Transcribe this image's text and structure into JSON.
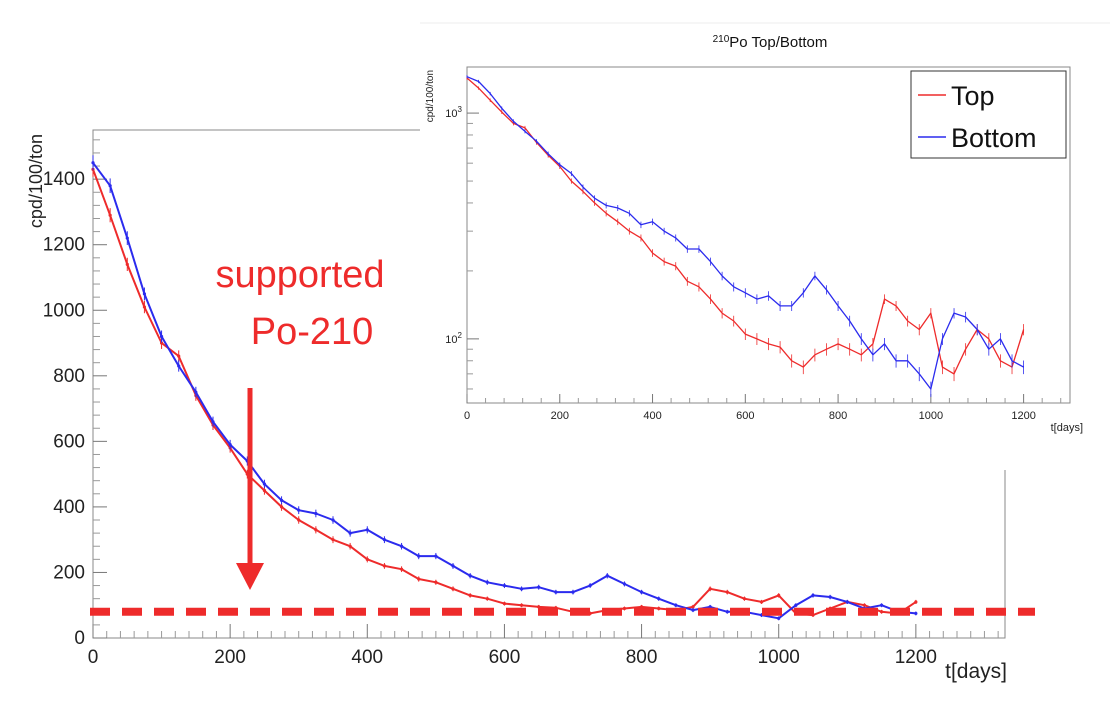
{
  "chart_data": [
    {
      "type": "line",
      "title": "",
      "xlabel": "t[days]",
      "ylabel": "cpd/100/ton",
      "xlim": [
        0,
        1330
      ],
      "ylim": [
        0,
        1550
      ],
      "xticks": [
        0,
        200,
        400,
        600,
        800,
        1000,
        1200
      ],
      "yticks": [
        0,
        200,
        400,
        600,
        800,
        1000,
        1200,
        1400
      ],
      "x": [
        0,
        25,
        50,
        75,
        100,
        125,
        150,
        175,
        200,
        225,
        250,
        275,
        300,
        325,
        350,
        375,
        400,
        425,
        450,
        475,
        500,
        525,
        550,
        575,
        600,
        625,
        650,
        675,
        700,
        725,
        750,
        775,
        800,
        825,
        850,
        875,
        900,
        925,
        950,
        975,
        1000,
        1025,
        1050,
        1075,
        1100,
        1125,
        1150,
        1175,
        1200
      ],
      "series": [
        {
          "name": "Top",
          "color": "#ee2b2b",
          "values": [
            1430,
            1290,
            1140,
            1010,
            900,
            860,
            740,
            650,
            580,
            500,
            450,
            400,
            360,
            330,
            300,
            280,
            240,
            220,
            210,
            180,
            170,
            150,
            130,
            120,
            105,
            100,
            95,
            92,
            80,
            75,
            85,
            90,
            95,
            90,
            85,
            95,
            150,
            140,
            120,
            110,
            130,
            75,
            70,
            90,
            110,
            100,
            80,
            75,
            110
          ]
        },
        {
          "name": "Bottom",
          "color": "#2b2bee",
          "values": [
            1450,
            1380,
            1220,
            1050,
            920,
            830,
            750,
            660,
            590,
            540,
            470,
            420,
            390,
            380,
            360,
            320,
            330,
            300,
            280,
            250,
            250,
            220,
            190,
            170,
            160,
            150,
            155,
            140,
            140,
            160,
            190,
            165,
            140,
            120,
            100,
            85,
            95,
            80,
            80,
            70,
            60,
            100,
            130,
            125,
            110,
            90,
            100,
            80,
            75
          ]
        }
      ],
      "reference_line": {
        "value": 80,
        "style": "dashed",
        "color": "#ee2b2b"
      }
    },
    {
      "type": "line",
      "title_main": "Po Top/Bottom",
      "title_sup": "210",
      "xlabel": "t[days]",
      "ylabel": "cpd/100/ton",
      "yscale": "log",
      "xlim": [
        0,
        1300
      ],
      "ylim": [
        52,
        1600
      ],
      "xticks": [
        0,
        200,
        400,
        600,
        800,
        1000,
        1200
      ],
      "yticks_log": [
        {
          "value": 100,
          "base": "10",
          "exp": "2"
        },
        {
          "value": 1000,
          "base": "10",
          "exp": "3"
        }
      ],
      "legend_placement": "top-right",
      "x": [
        0,
        25,
        50,
        75,
        100,
        125,
        150,
        175,
        200,
        225,
        250,
        275,
        300,
        325,
        350,
        375,
        400,
        425,
        450,
        475,
        500,
        525,
        550,
        575,
        600,
        625,
        650,
        675,
        700,
        725,
        750,
        775,
        800,
        825,
        850,
        875,
        900,
        925,
        950,
        975,
        1000,
        1025,
        1050,
        1075,
        1100,
        1125,
        1150,
        1175,
        1200
      ],
      "series": [
        {
          "name": "Top",
          "color": "#ee2b2b",
          "values": [
            1430,
            1290,
            1140,
            1010,
            900,
            860,
            740,
            650,
            580,
            500,
            450,
            400,
            360,
            330,
            300,
            280,
            240,
            220,
            210,
            180,
            170,
            150,
            130,
            120,
            105,
            100,
            95,
            92,
            80,
            75,
            85,
            90,
            95,
            90,
            85,
            95,
            150,
            140,
            120,
            110,
            130,
            75,
            70,
            90,
            110,
            100,
            80,
            75,
            110
          ]
        },
        {
          "name": "Bottom",
          "color": "#2b2bee",
          "values": [
            1450,
            1380,
            1220,
            1050,
            920,
            830,
            750,
            660,
            590,
            540,
            470,
            420,
            390,
            380,
            360,
            320,
            330,
            300,
            280,
            250,
            250,
            220,
            190,
            170,
            160,
            150,
            155,
            140,
            140,
            160,
            190,
            165,
            140,
            120,
            100,
            85,
            95,
            80,
            80,
            70,
            60,
            100,
            130,
            125,
            110,
            90,
            100,
            80,
            75
          ]
        }
      ]
    }
  ],
  "annotation": {
    "lines": [
      "supported",
      "Po-210"
    ],
    "arrow_target": {
      "x": 230,
      "y": 160
    },
    "color": "#ee2b2b"
  }
}
